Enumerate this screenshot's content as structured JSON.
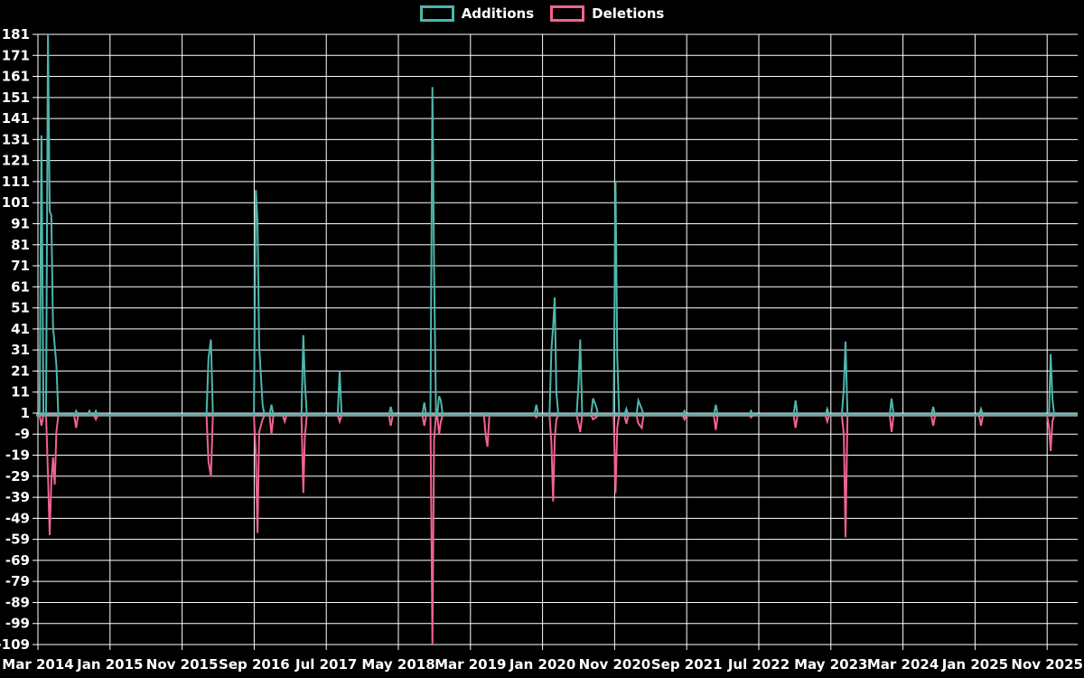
{
  "legend": {
    "items": [
      {
        "label": "Additions",
        "color": "#4db6ac"
      },
      {
        "label": "Deletions",
        "color": "#f06292"
      }
    ]
  },
  "colors": {
    "background": "#000000",
    "grid": "#ffffff",
    "zero_line": "#90a4ae",
    "tick_text": "#ffffff",
    "additions": "#4db6ac",
    "deletions": "#f06292"
  },
  "chart_data": {
    "type": "line",
    "title": "",
    "xlabel": "",
    "ylabel": "",
    "legend_position": "top-center",
    "grid": "on",
    "x_axis": {
      "tick_labels": [
        "Mar 2014",
        "Jan 2015",
        "Nov 2015",
        "Sep 2016",
        "Jul 2017",
        "May 2018",
        "Mar 2019",
        "Jan 2020",
        "Nov 2020",
        "Sep 2021",
        "Jul 2022",
        "May 2023",
        "Mar 2024",
        "Jan 2025",
        "Nov 2025"
      ],
      "tick_interval_months": 10,
      "start_month": "2014-03"
    },
    "y_axis": {
      "ticks": [
        181,
        171,
        161,
        151,
        141,
        131,
        121,
        111,
        101,
        91,
        81,
        71,
        61,
        51,
        41,
        31,
        21,
        11,
        1,
        -9,
        -19,
        -29,
        -39,
        -49,
        -59,
        -69,
        -79,
        -89,
        -99,
        -109
      ],
      "min": -109,
      "max": 181,
      "baseline": 0
    },
    "series_names": [
      "Additions",
      "Deletions"
    ],
    "events": [
      {
        "date": "2014-03-16",
        "additions": 133,
        "deletions": -5
      },
      {
        "date": "2014-04-13",
        "additions": 181,
        "deletions": -28
      },
      {
        "date": "2014-04-20",
        "additions": 97,
        "deletions": -57
      },
      {
        "date": "2014-04-27",
        "additions": 95,
        "deletions": -32
      },
      {
        "date": "2014-05-04",
        "additions": 42,
        "deletions": -20
      },
      {
        "date": "2014-05-11",
        "additions": 33,
        "deletions": -33
      },
      {
        "date": "2014-05-18",
        "additions": 24,
        "deletions": -8
      },
      {
        "date": "2014-08-10",
        "additions": 2,
        "deletions": -6
      },
      {
        "date": "2014-10-05",
        "additions": 2,
        "deletions": 0
      },
      {
        "date": "2014-11-02",
        "additions": 2,
        "deletions": -2
      },
      {
        "date": "2016-02-21",
        "additions": 27,
        "deletions": -22
      },
      {
        "date": "2016-03-01",
        "additions": 36,
        "deletions": -29
      },
      {
        "date": "2016-09-08",
        "additions": 107,
        "deletions": -19
      },
      {
        "date": "2016-09-15",
        "additions": 92,
        "deletions": -56
      },
      {
        "date": "2016-09-22",
        "additions": 33,
        "deletions": -8
      },
      {
        "date": "2016-10-06",
        "additions": 5,
        "deletions": -2
      },
      {
        "date": "2016-11-13",
        "additions": 5,
        "deletions": -9
      },
      {
        "date": "2017-01-08",
        "additions": 1,
        "deletions": -3
      },
      {
        "date": "2017-03-26",
        "additions": 38,
        "deletions": -37
      },
      {
        "date": "2017-04-02",
        "additions": 16,
        "deletions": -10
      },
      {
        "date": "2017-08-27",
        "additions": 21,
        "deletions": -3
      },
      {
        "date": "2018-03-30",
        "additions": 4,
        "deletions": -5
      },
      {
        "date": "2018-08-19",
        "additions": 6,
        "deletions": -5
      },
      {
        "date": "2018-09-23",
        "additions": 156,
        "deletions": -109
      },
      {
        "date": "2018-09-30",
        "additions": 71,
        "deletions": -12
      },
      {
        "date": "2018-10-21",
        "additions": 9,
        "deletions": -9
      },
      {
        "date": "2018-10-28",
        "additions": 7,
        "deletions": -3
      },
      {
        "date": "2019-05-05",
        "additions": 1,
        "deletions": -10
      },
      {
        "date": "2019-05-12",
        "additions": 1,
        "deletions": -15
      },
      {
        "date": "2019-12-05",
        "additions": 5,
        "deletions": -1
      },
      {
        "date": "2020-02-08",
        "additions": 31,
        "deletions": -13
      },
      {
        "date": "2020-02-15",
        "additions": 42,
        "deletions": -41
      },
      {
        "date": "2020-02-22",
        "additions": 56,
        "deletions": -11
      },
      {
        "date": "2020-02-29",
        "additions": 11,
        "deletions": -2
      },
      {
        "date": "2020-06-01",
        "additions": 15,
        "deletions": -4
      },
      {
        "date": "2020-06-08",
        "additions": 36,
        "deletions": -8
      },
      {
        "date": "2020-08-01",
        "additions": 8,
        "deletions": -2
      },
      {
        "date": "2020-08-15",
        "additions": 4,
        "deletions": -1
      },
      {
        "date": "2020-11-05",
        "additions": 111,
        "deletions": -37
      },
      {
        "date": "2020-11-12",
        "additions": 28,
        "deletions": -6
      },
      {
        "date": "2020-12-20",
        "additions": 3,
        "deletions": -4
      },
      {
        "date": "2021-02-10",
        "additions": 7,
        "deletions": -4
      },
      {
        "date": "2021-02-24",
        "additions": 3,
        "deletions": -6
      },
      {
        "date": "2021-08-22",
        "additions": 2,
        "deletions": -2
      },
      {
        "date": "2022-01-02",
        "additions": 5,
        "deletions": -7
      },
      {
        "date": "2022-05-29",
        "additions": 2,
        "deletions": -1
      },
      {
        "date": "2022-12-04",
        "additions": 7,
        "deletions": -6
      },
      {
        "date": "2023-04-16",
        "additions": 3,
        "deletions": -3
      },
      {
        "date": "2023-06-25",
        "additions": 13,
        "deletions": -9
      },
      {
        "date": "2023-07-02",
        "additions": 35,
        "deletions": -58
      },
      {
        "date": "2024-01-14",
        "additions": 8,
        "deletions": -8
      },
      {
        "date": "2024-07-07",
        "additions": 4,
        "deletions": -5
      },
      {
        "date": "2025-01-26",
        "additions": 3,
        "deletions": -5
      },
      {
        "date": "2025-11-09",
        "additions": 1,
        "deletions": -6
      },
      {
        "date": "2025-11-16",
        "additions": 29,
        "deletions": -17
      },
      {
        "date": "2025-11-23",
        "additions": 8,
        "deletions": -3
      }
    ]
  }
}
